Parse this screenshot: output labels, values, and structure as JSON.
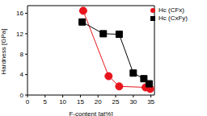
{
  "chart_data": {
    "type": "line",
    "x_label": "F-content [at%]",
    "y_label": "Hardness [GPa]",
    "xlim": [
      0,
      36
    ],
    "xticks": [
      0,
      5,
      10,
      15,
      20,
      25,
      30,
      35
    ],
    "ylim": [
      0,
      17.5
    ],
    "yticks": [
      0,
      4,
      8,
      12,
      16
    ],
    "legend": "top-right",
    "grid": false,
    "series": [
      {
        "name": "Hc (CFx)",
        "color": "#e8141c",
        "marker": "circle",
        "line_style": "solid",
        "x": [
          15.8,
          23,
          26,
          33.5,
          34.8
        ],
        "values": [
          16.5,
          3.7,
          1.7,
          1.5,
          1.2
        ]
      },
      {
        "name": "Hc (CxFy)",
        "color": "#000000",
        "marker": "square",
        "line_style": "solid",
        "x": [
          15.5,
          21.5,
          26,
          30,
          33,
          34.5
        ],
        "values": [
          14.3,
          12,
          11.9,
          4.3,
          3.2,
          2.2
        ]
      }
    ]
  }
}
